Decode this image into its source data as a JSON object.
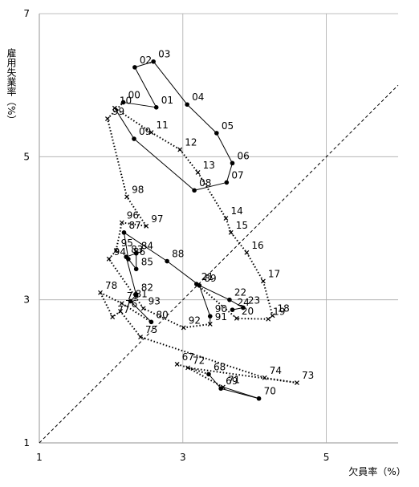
{
  "chart_data": {
    "type": "line",
    "x_label": "欠員率（%）",
    "y_label": "雇用失業率（%）",
    "xlim": [
      1,
      6
    ],
    "ylim": [
      1,
      7
    ],
    "xticks": [
      1,
      3,
      5
    ],
    "yticks": [
      1,
      3,
      5,
      7
    ],
    "grid": true,
    "color": "#000000",
    "categories": [
      "67",
      "68",
      "69",
      "70",
      "71",
      "72",
      "73",
      "74",
      "75",
      "76",
      "77",
      "78",
      "79",
      "80",
      "81",
      "82",
      "83",
      "84",
      "85",
      "86",
      "87",
      "88",
      "89",
      "90",
      "91",
      "92",
      "93",
      "94",
      "95",
      "96",
      "97",
      "98",
      "99",
      "00",
      "01",
      "02",
      "03",
      "04",
      "05",
      "06",
      "07",
      "08",
      "09",
      "10",
      "11",
      "12",
      "13",
      "14",
      "15",
      "16",
      "17",
      "18",
      "19",
      "20",
      "21",
      "22",
      "23",
      "24"
    ],
    "x": [
      2.92,
      3.36,
      3.53,
      4.06,
      3.56,
      3.07,
      4.59,
      4.14,
      2.41,
      2.13,
      2.02,
      1.85,
      2.15,
      2.56,
      2.27,
      2.35,
      2.21,
      2.35,
      2.35,
      2.24,
      2.18,
      2.78,
      3.23,
      3.38,
      3.38,
      3.01,
      2.45,
      1.97,
      2.07,
      2.15,
      2.49,
      2.22,
      1.95,
      2.17,
      2.63,
      2.33,
      2.59,
      3.06,
      3.47,
      3.69,
      3.61,
      3.16,
      2.32,
      2.05,
      2.56,
      2.96,
      3.21,
      3.6,
      3.67,
      3.89,
      4.12,
      4.25,
      4.19,
      3.75,
      3.19,
      3.65,
      3.84,
      3.69
    ],
    "values": [
      2.1,
      1.96,
      1.76,
      1.62,
      1.78,
      2.05,
      1.84,
      1.91,
      2.48,
      2.84,
      2.76,
      3.1,
      2.95,
      2.69,
      2.98,
      3.07,
      3.6,
      3.65,
      3.43,
      3.57,
      3.94,
      3.54,
      3.2,
      2.77,
      2.66,
      2.61,
      2.88,
      3.57,
      3.69,
      4.08,
      4.03,
      4.44,
      5.53,
      5.76,
      5.69,
      6.25,
      6.33,
      5.73,
      5.33,
      4.91,
      4.64,
      4.53,
      5.25,
      5.68,
      5.34,
      5.1,
      4.78,
      4.14,
      3.94,
      3.66,
      3.26,
      2.78,
      2.73,
      2.74,
      3.22,
      3.0,
      2.89,
      2.86
    ],
    "styles": [
      "dotted",
      "solid",
      "solid",
      "solid",
      "dotted",
      "dotted",
      "dotted",
      "dotted",
      "dotted",
      "dotted",
      "dotted",
      "dotted",
      "dotted",
      "solid",
      "solid",
      "solid",
      "solid",
      "solid",
      "solid",
      "solid",
      "solid",
      "solid",
      "solid",
      "solid",
      "dotted",
      "dotted",
      "dotted",
      "dotted",
      "dotted",
      "dotted",
      "dotted",
      "dotted",
      "dotted",
      "solid",
      "solid",
      "solid",
      "solid",
      "solid",
      "solid",
      "solid",
      "solid",
      "solid",
      "solid",
      "dotted",
      "dotted",
      "dotted",
      "dotted",
      "dotted",
      "dotted",
      "dotted",
      "dotted",
      "dotted",
      "dotted",
      "dotted",
      "solid",
      "solid",
      "solid",
      "solid"
    ]
  }
}
